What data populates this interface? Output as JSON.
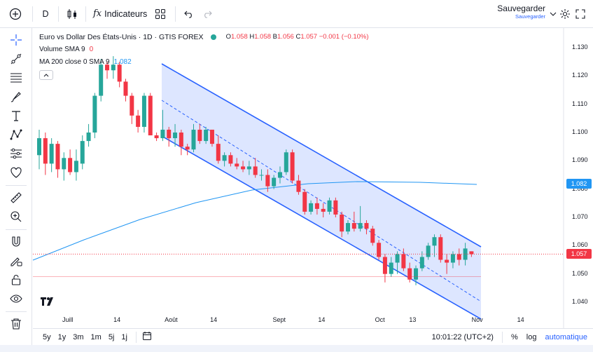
{
  "toolbar": {
    "interval": "D",
    "indicators_label": "Indicateurs",
    "save_label": "Sauvegarder",
    "save_sub": "Sauvegarder"
  },
  "legend": {
    "symbol": "Euro vs Dollar Des États-Unis · 1D · GTIS FOREX",
    "o_key": "O",
    "o": "1.058",
    "h_key": "H",
    "h": "1.058",
    "b_key": "B",
    "b": "1.056",
    "c_key": "C",
    "c": "1.057",
    "change": "−0.001 (−0.10%)",
    "volume_label": "Volume SMA 9",
    "volume_value": "0",
    "ma_label": "MA 200 close 0 SMA 9",
    "ma_value": "1.082"
  },
  "price_axis": {
    "ticks": [
      "1.130",
      "1.120",
      "1.110",
      "1.100",
      "1.090",
      "1.080",
      "1.070",
      "1.060",
      "1.050",
      "1.040"
    ],
    "ma_tag": "1.082",
    "ma_tag_color": "#2196f3",
    "last_tag": "1.057",
    "last_tag_color": "#f23645"
  },
  "time_axis": {
    "labels": [
      "Juill",
      "14",
      "Août",
      "14",
      "Sept",
      "14",
      "Oct",
      "13",
      "Nov",
      "14"
    ]
  },
  "bottom": {
    "ranges": [
      "5y",
      "1y",
      "3m",
      "1m",
      "5j",
      "1j"
    ],
    "clock": "10:01:22 (UTC+2)",
    "percent": "%",
    "log": "log",
    "auto": "automatique"
  },
  "colors": {
    "up": "#26a69a",
    "down": "#f23645",
    "channel": "#2962ff",
    "ma": "#2196f3"
  },
  "chart_data": {
    "type": "candlestick",
    "symbol": "EURUSD",
    "interval": "1D",
    "ylim": [
      1.036,
      1.133
    ],
    "indicators": [
      {
        "name": "MA 200 close 0 SMA 9",
        "last": 1.082
      },
      {
        "name": "Volume SMA 9",
        "last": 0
      }
    ],
    "candles": [
      [
        1.092,
        1.101,
        1.087,
        1.098
      ],
      [
        1.098,
        1.1,
        1.085,
        1.089
      ],
      [
        1.089,
        1.098,
        1.086,
        1.096
      ],
      [
        1.096,
        1.097,
        1.084,
        1.087
      ],
      [
        1.087,
        1.093,
        1.083,
        1.091
      ],
      [
        1.091,
        1.094,
        1.085,
        1.086
      ],
      [
        1.086,
        1.094,
        1.083,
        1.09
      ],
      [
        1.089,
        1.099,
        1.087,
        1.097
      ],
      [
        1.097,
        1.103,
        1.095,
        1.1
      ],
      [
        1.1,
        1.114,
        1.098,
        1.113
      ],
      [
        1.113,
        1.126,
        1.111,
        1.124
      ],
      [
        1.124,
        1.125,
        1.119,
        1.122
      ],
      [
        1.122,
        1.127,
        1.119,
        1.124
      ],
      [
        1.124,
        1.125,
        1.116,
        1.118
      ],
      [
        1.118,
        1.119,
        1.111,
        1.113
      ],
      [
        1.113,
        1.114,
        1.103,
        1.106
      ],
      [
        1.106,
        1.108,
        1.1,
        1.102
      ],
      [
        1.102,
        1.114,
        1.1,
        1.113
      ],
      [
        1.113,
        1.114,
        1.099,
        1.099
      ],
      [
        1.099,
        1.1,
        1.097,
        1.098
      ],
      [
        1.098,
        1.108,
        1.097,
        1.101
      ],
      [
        1.101,
        1.102,
        1.095,
        1.098
      ],
      [
        1.098,
        1.103,
        1.095,
        1.1
      ],
      [
        1.1,
        1.101,
        1.092,
        1.095
      ],
      [
        1.095,
        1.096,
        1.092,
        1.094
      ],
      [
        1.094,
        1.103,
        1.093,
        1.101
      ],
      [
        1.101,
        1.103,
        1.096,
        1.097
      ],
      [
        1.097,
        1.102,
        1.096,
        1.101
      ],
      [
        1.101,
        1.101,
        1.095,
        1.096
      ],
      [
        1.096,
        1.099,
        1.089,
        1.09
      ],
      [
        1.09,
        1.093,
        1.088,
        1.092
      ],
      [
        1.092,
        1.093,
        1.088,
        1.089
      ],
      [
        1.089,
        1.091,
        1.087,
        1.088
      ],
      [
        1.088,
        1.09,
        1.086,
        1.087
      ],
      [
        1.087,
        1.09,
        1.085,
        1.088
      ],
      [
        1.088,
        1.091,
        1.084,
        1.085
      ],
      [
        1.085,
        1.087,
        1.083,
        1.085
      ],
      [
        1.085,
        1.087,
        1.079,
        1.081
      ],
      [
        1.081,
        1.085,
        1.08,
        1.084
      ],
      [
        1.084,
        1.088,
        1.082,
        1.086
      ],
      [
        1.086,
        1.094,
        1.085,
        1.093
      ],
      [
        1.093,
        1.094,
        1.082,
        1.083
      ],
      [
        1.083,
        1.085,
        1.078,
        1.079
      ],
      [
        1.079,
        1.08,
        1.071,
        1.072
      ],
      [
        1.072,
        1.076,
        1.071,
        1.075
      ],
      [
        1.075,
        1.077,
        1.071,
        1.073
      ],
      [
        1.073,
        1.075,
        1.07,
        1.072
      ],
      [
        1.072,
        1.077,
        1.071,
        1.076
      ],
      [
        1.076,
        1.077,
        1.07,
        1.071
      ],
      [
        1.071,
        1.072,
        1.063,
        1.065
      ],
      [
        1.065,
        1.069,
        1.064,
        1.068
      ],
      [
        1.068,
        1.072,
        1.065,
        1.066
      ],
      [
        1.066,
        1.074,
        1.065,
        1.068
      ],
      [
        1.068,
        1.069,
        1.064,
        1.066
      ],
      [
        1.066,
        1.067,
        1.06,
        1.061
      ],
      [
        1.061,
        1.062,
        1.055,
        1.056
      ],
      [
        1.056,
        1.057,
        1.047,
        1.05
      ],
      [
        1.05,
        1.056,
        1.049,
        1.054
      ],
      [
        1.054,
        1.058,
        1.05,
        1.057
      ],
      [
        1.057,
        1.059,
        1.051,
        1.052
      ],
      [
        1.052,
        1.054,
        1.047,
        1.048
      ],
      [
        1.048,
        1.053,
        1.046,
        1.052
      ],
      [
        1.052,
        1.058,
        1.051,
        1.056
      ],
      [
        1.056,
        1.061,
        1.055,
        1.06
      ],
      [
        1.06,
        1.064,
        1.056,
        1.063
      ],
      [
        1.063,
        1.064,
        1.054,
        1.055
      ],
      [
        1.055,
        1.057,
        1.05,
        1.054
      ],
      [
        1.054,
        1.058,
        1.052,
        1.057
      ],
      [
        1.057,
        1.059,
        1.053,
        1.055
      ],
      [
        1.055,
        1.061,
        1.053,
        1.059
      ],
      [
        1.058,
        1.058,
        1.056,
        1.057
      ]
    ],
    "ma200": [
      1.056,
      1.06,
      1.066,
      1.072,
      1.077,
      1.08,
      1.082,
      1.082,
      1.081
    ],
    "last_price": 1.057,
    "reference_price": 1.049
  }
}
